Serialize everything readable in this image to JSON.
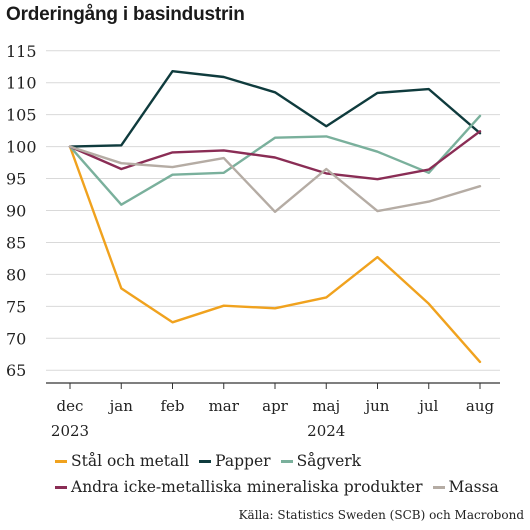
{
  "chart_data": {
    "type": "line",
    "title": "Orderingång i basindustrin",
    "categories": [
      "dec",
      "jan",
      "feb",
      "mar",
      "apr",
      "maj",
      "jun",
      "jul",
      "aug"
    ],
    "year_labels": [
      "2023",
      "2024"
    ],
    "ylim": [
      63,
      117
    ],
    "yticks": [
      65,
      70,
      75,
      80,
      85,
      90,
      95,
      100,
      105,
      110,
      115
    ],
    "grid": true,
    "legend_position": "bottom",
    "series": [
      {
        "name": "Stål och metall",
        "color": "#f0a21e",
        "values": [
          100,
          77.8,
          72.5,
          75.1,
          74.7,
          76.4,
          82.7,
          75.4,
          66.3
        ]
      },
      {
        "name": "Papper",
        "color": "#0f3b3d",
        "values": [
          100,
          100.2,
          111.8,
          110.9,
          108.5,
          103.2,
          108.4,
          109.0,
          102.1
        ]
      },
      {
        "name": "Sågverk",
        "color": "#7ab09c",
        "values": [
          100,
          90.9,
          95.6,
          95.9,
          101.4,
          101.6,
          99.2,
          95.9,
          104.8
        ]
      },
      {
        "name": "Andra icke-metalliska mineraliska produkter",
        "color": "#8a2d55",
        "values": [
          100,
          96.5,
          99.1,
          99.4,
          98.3,
          95.8,
          94.9,
          96.4,
          102.4
        ]
      },
      {
        "name": "Massa",
        "color": "#b5aca4",
        "values": [
          100,
          97.4,
          96.8,
          98.2,
          89.8,
          96.5,
          89.9,
          91.4,
          93.8
        ]
      }
    ]
  },
  "source": "Källa: Statistics Sweden (SCB) och Macrobond"
}
